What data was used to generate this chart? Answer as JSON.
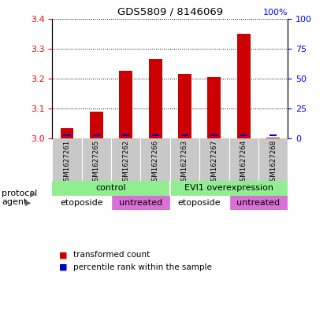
{
  "title": "GDS5809 / 8146069",
  "samples": [
    "GSM1627261",
    "GSM1627265",
    "GSM1627262",
    "GSM1627266",
    "GSM1627263",
    "GSM1627267",
    "GSM1627264",
    "GSM1627268"
  ],
  "red_values": [
    3.035,
    3.09,
    3.225,
    3.265,
    3.215,
    3.205,
    3.35,
    3.002
  ],
  "blue_values_pct": [
    2.0,
    3.5,
    5.0,
    5.5,
    5.0,
    5.0,
    5.5,
    6.5
  ],
  "ymin": 3.0,
  "ymax": 3.4,
  "y_ticks_red": [
    3.0,
    3.1,
    3.2,
    3.3,
    3.4
  ],
  "y_ticks_blue": [
    0,
    25,
    50,
    75,
    100
  ],
  "bar_color_red": "#CC0000",
  "bar_color_blue": "#0000CC",
  "bar_width": 0.45,
  "sample_bg_color": "#c8c8c8",
  "protocol_color": "#90EE90",
  "etoposide_color": "#ffffff",
  "untreated_color": "#DA70D6",
  "legend_items": [
    {
      "color": "#CC0000",
      "label": "transformed count"
    },
    {
      "color": "#0000CC",
      "label": "percentile rank within the sample"
    }
  ],
  "agent_groups": [
    {
      "start": 0,
      "end": 2,
      "label": "etoposide",
      "type": "etoposide"
    },
    {
      "start": 2,
      "end": 4,
      "label": "untreated",
      "type": "untreated"
    },
    {
      "start": 4,
      "end": 6,
      "label": "etoposide",
      "type": "etoposide"
    },
    {
      "start": 6,
      "end": 8,
      "label": "untreated",
      "type": "untreated"
    }
  ],
  "protocol_groups": [
    {
      "start": 0,
      "end": 4,
      "label": "control"
    },
    {
      "start": 4,
      "end": 8,
      "label": "EVI1 overexpression"
    }
  ]
}
